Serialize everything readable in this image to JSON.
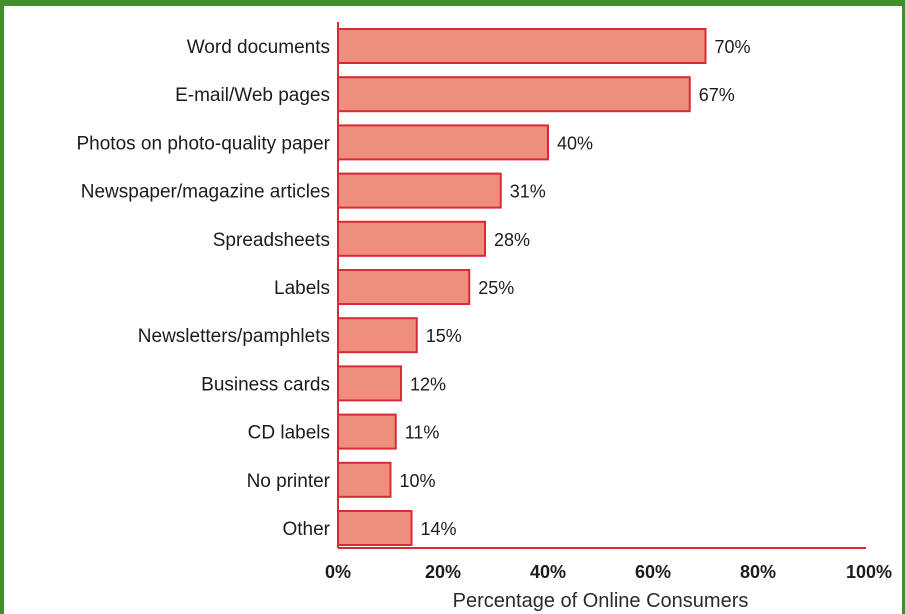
{
  "chart_data": {
    "type": "bar",
    "orientation": "horizontal",
    "categories": [
      "Word documents",
      "E-mail/Web pages",
      "Photos on photo-quality paper",
      "Newspaper/magazine articles",
      "Spreadsheets",
      "Labels",
      "Newsletters/pamphlets",
      "Business cards",
      "CD labels",
      "No printer",
      "Other"
    ],
    "values": [
      70,
      67,
      40,
      31,
      28,
      25,
      15,
      12,
      11,
      10,
      14
    ],
    "value_labels": [
      "70%",
      "67%",
      "40%",
      "31%",
      "28%",
      "25%",
      "15%",
      "12%",
      "11%",
      "10%",
      "14%"
    ],
    "title": "",
    "xlabel": "Percentage of Online Consumers",
    "ylabel": "",
    "xlim": [
      0,
      100
    ],
    "x_ticks": [
      "0%",
      "20%",
      "40%",
      "60%",
      "80%",
      "100%"
    ],
    "x_tick_values": [
      0,
      20,
      40,
      60,
      80,
      100
    ],
    "grid": false,
    "colors": {
      "bar_fill": "#ee8f7d",
      "bar_stroke": "#d92b35",
      "axis": "#d92b35",
      "border": "#3f8f2f"
    }
  }
}
